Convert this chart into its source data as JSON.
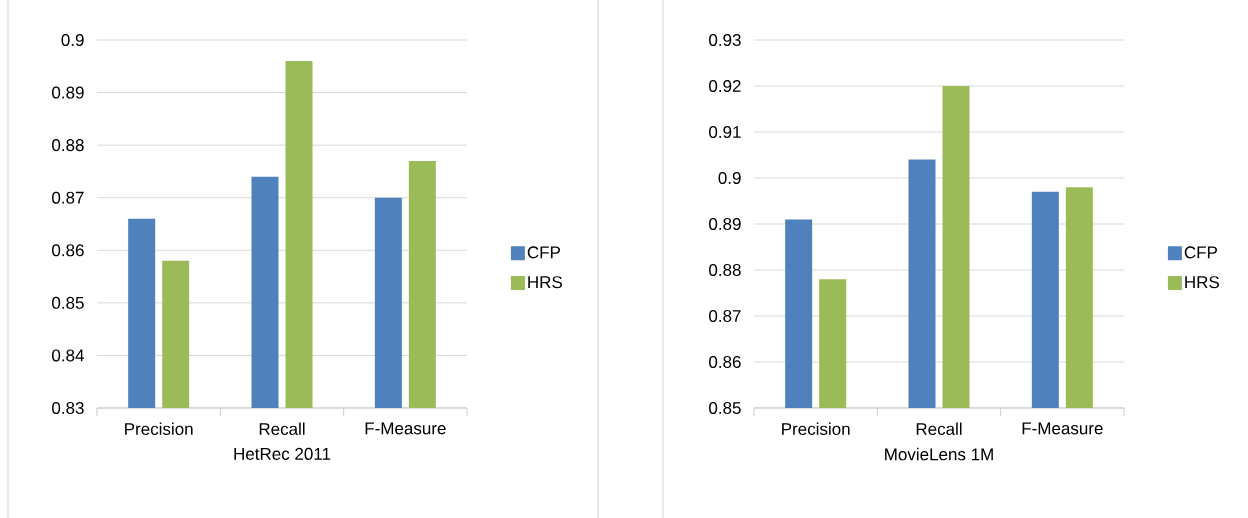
{
  "chart_data": [
    {
      "type": "bar",
      "xlabel": "HetRec 2011",
      "categories": [
        "Precision",
        "Recall",
        "F-Measure"
      ],
      "series": [
        {
          "name": "CFP",
          "color": "#4f81bd",
          "values": [
            0.866,
            0.874,
            0.87
          ]
        },
        {
          "name": "HRS",
          "color": "#9bbb59",
          "values": [
            0.858,
            0.896,
            0.877
          ]
        }
      ],
      "ylim": [
        0.83,
        0.9
      ],
      "yticks": [
        0.83,
        0.84,
        0.85,
        0.86,
        0.87,
        0.88,
        0.89,
        0.9
      ],
      "grid": "y",
      "legend": "right"
    },
    {
      "type": "bar",
      "xlabel": "MovieLens 1M",
      "categories": [
        "Precision",
        "Recall",
        "F-Measure"
      ],
      "series": [
        {
          "name": "CFP",
          "color": "#4f81bd",
          "values": [
            0.891,
            0.904,
            0.897
          ]
        },
        {
          "name": "HRS",
          "color": "#9bbb59",
          "values": [
            0.878,
            0.92,
            0.898
          ]
        }
      ],
      "ylim": [
        0.85,
        0.93
      ],
      "yticks": [
        0.85,
        0.86,
        0.87,
        0.88,
        0.89,
        0.9,
        0.91,
        0.92,
        0.93
      ],
      "grid": "y",
      "legend": "right"
    }
  ]
}
